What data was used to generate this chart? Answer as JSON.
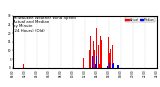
{
  "title_line1": "Milwaukee Weather Wind Speed",
  "title_line2": "Actual and Median",
  "title_line3": "by Minute",
  "title_line4": "(24 Hours) (Old)",
  "background_color": "#ffffff",
  "bar_color_actual": "#ff0000",
  "bar_color_median": "#0000ff",
  "legend_actual": "Actual",
  "legend_median": "Median",
  "ylim": [
    0,
    30
  ],
  "xlim": [
    0,
    1440
  ],
  "num_minutes": 1440,
  "title_fontsize": 2.8,
  "legend_fontsize": 2.2,
  "tick_fontsize": 2.0,
  "dpi": 100,
  "fig_width": 1.6,
  "fig_height": 0.87
}
